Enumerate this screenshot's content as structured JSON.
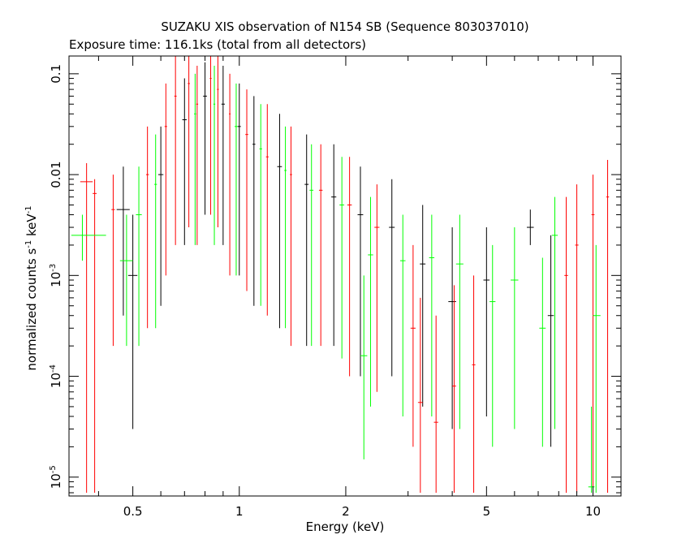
{
  "chart_data": {
    "type": "scatter",
    "title": "SUZAKU XIS observation of N154 SB (Sequence 803037010)",
    "subtitle": "Exposure time: 116.1ks (total from all detectors)",
    "xlabel": "Energy (keV)",
    "ylabel": "normalized counts s^-1 keV^-1",
    "ylabel_main": "normalized counts s",
    "ylabel_mid": " keV",
    "ylabel_exp": "-1",
    "x_scale": "log",
    "y_scale": "log",
    "xlim": [
      0.33,
      12.0
    ],
    "ylim": [
      6.5e-06,
      0.15
    ],
    "x_ticks": [
      {
        "value": 0.5,
        "label": "0.5"
      },
      {
        "value": 1,
        "label": "1"
      },
      {
        "value": 2,
        "label": "2"
      },
      {
        "value": 5,
        "label": "5"
      },
      {
        "value": 10,
        "label": "10"
      }
    ],
    "y_ticks": [
      {
        "value": 0.1,
        "label": "0.1",
        "exp": ""
      },
      {
        "value": 0.01,
        "label": "0.01",
        "exp": ""
      },
      {
        "value": 0.001,
        "label": "10",
        "exp": "-3"
      },
      {
        "value": 0.0001,
        "label": "10",
        "exp": "-4"
      },
      {
        "value": 1e-05,
        "label": "10",
        "exp": "-5"
      }
    ],
    "grid": false,
    "series": [
      {
        "color": "#000000",
        "points": [
          {
            "x": 0.47,
            "xlo": 0.45,
            "xhi": 0.49,
            "y": 0.0045,
            "ylo": 0.0004,
            "yhi": 0.012
          },
          {
            "x": 0.5,
            "xlo": 0.485,
            "xhi": 0.515,
            "y": 0.001,
            "ylo": 3e-05,
            "yhi": 0.004
          },
          {
            "x": 0.6,
            "xlo": 0.59,
            "xhi": 0.61,
            "y": 0.01,
            "ylo": 0.0005,
            "yhi": 0.03
          },
          {
            "x": 0.7,
            "xlo": 0.69,
            "xhi": 0.71,
            "y": 0.035,
            "ylo": 0.002,
            "yhi": 0.09
          },
          {
            "x": 0.8,
            "xlo": 0.79,
            "xhi": 0.81,
            "y": 0.06,
            "ylo": 0.004,
            "yhi": 0.13
          },
          {
            "x": 0.9,
            "xlo": 0.89,
            "xhi": 0.91,
            "y": 0.05,
            "ylo": 0.002,
            "yhi": 0.12
          },
          {
            "x": 1.0,
            "xlo": 0.99,
            "xhi": 1.01,
            "y": 0.03,
            "ylo": 0.001,
            "yhi": 0.08
          },
          {
            "x": 1.1,
            "xlo": 1.09,
            "xhi": 1.11,
            "y": 0.02,
            "ylo": 0.0005,
            "yhi": 0.06
          },
          {
            "x": 1.3,
            "xlo": 1.28,
            "xhi": 1.32,
            "y": 0.012,
            "ylo": 0.0003,
            "yhi": 0.04
          },
          {
            "x": 1.55,
            "xlo": 1.53,
            "xhi": 1.57,
            "y": 0.008,
            "ylo": 0.0002,
            "yhi": 0.025
          },
          {
            "x": 1.85,
            "xlo": 1.82,
            "xhi": 1.88,
            "y": 0.006,
            "ylo": 0.0002,
            "yhi": 0.02
          },
          {
            "x": 2.2,
            "xlo": 2.16,
            "xhi": 2.24,
            "y": 0.004,
            "ylo": 0.0001,
            "yhi": 0.012
          },
          {
            "x": 2.7,
            "xlo": 2.65,
            "xhi": 2.75,
            "y": 0.003,
            "ylo": 0.0001,
            "yhi": 0.009
          },
          {
            "x": 3.3,
            "xlo": 3.24,
            "xhi": 3.36,
            "y": 0.0013,
            "ylo": 5e-05,
            "yhi": 0.005
          },
          {
            "x": 4.0,
            "xlo": 3.9,
            "xhi": 4.1,
            "y": 0.00055,
            "ylo": 3e-05,
            "yhi": 0.003
          },
          {
            "x": 5.0,
            "xlo": 4.9,
            "xhi": 5.1,
            "y": 0.0009,
            "ylo": 4e-05,
            "yhi": 0.003
          },
          {
            "x": 6.65,
            "xlo": 6.5,
            "xhi": 6.8,
            "y": 0.003,
            "ylo": 0.002,
            "yhi": 0.0045
          },
          {
            "x": 7.6,
            "xlo": 7.45,
            "xhi": 7.75,
            "y": 0.0004,
            "ylo": 2e-05,
            "yhi": 0.0025
          }
        ]
      },
      {
        "color": "#ff0000",
        "points": [
          {
            "x": 0.37,
            "xlo": 0.355,
            "xhi": 0.385,
            "y": 0.0085,
            "ylo": 7e-06,
            "yhi": 0.013
          },
          {
            "x": 0.39,
            "xlo": 0.385,
            "xhi": 0.395,
            "y": 0.0065,
            "ylo": 7e-06,
            "yhi": 0.009
          },
          {
            "x": 0.44,
            "xlo": 0.435,
            "xhi": 0.445,
            "y": 0.0045,
            "ylo": 0.0002,
            "yhi": 0.01
          },
          {
            "x": 0.55,
            "xlo": 0.545,
            "xhi": 0.555,
            "y": 0.01,
            "ylo": 0.0003,
            "yhi": 0.03
          },
          {
            "x": 0.62,
            "xlo": 0.615,
            "xhi": 0.625,
            "y": 0.03,
            "ylo": 0.001,
            "yhi": 0.08
          },
          {
            "x": 0.66,
            "xlo": 0.655,
            "xhi": 0.665,
            "y": 0.06,
            "ylo": 0.002,
            "yhi": 0.15
          },
          {
            "x": 0.72,
            "xlo": 0.715,
            "xhi": 0.725,
            "y": 0.08,
            "ylo": 0.003,
            "yhi": 0.15
          },
          {
            "x": 0.76,
            "xlo": 0.755,
            "xhi": 0.765,
            "y": 0.05,
            "ylo": 0.002,
            "yhi": 0.12
          },
          {
            "x": 0.83,
            "xlo": 0.825,
            "xhi": 0.835,
            "y": 0.09,
            "ylo": 0.004,
            "yhi": 0.15
          },
          {
            "x": 0.87,
            "xlo": 0.865,
            "xhi": 0.875,
            "y": 0.07,
            "ylo": 0.003,
            "yhi": 0.15
          },
          {
            "x": 0.94,
            "xlo": 0.935,
            "xhi": 0.945,
            "y": 0.04,
            "ylo": 0.001,
            "yhi": 0.1
          },
          {
            "x": 1.05,
            "xlo": 1.04,
            "xhi": 1.06,
            "y": 0.025,
            "ylo": 0.0007,
            "yhi": 0.07
          },
          {
            "x": 1.2,
            "xlo": 1.19,
            "xhi": 1.21,
            "y": 0.015,
            "ylo": 0.0004,
            "yhi": 0.05
          },
          {
            "x": 1.4,
            "xlo": 1.39,
            "xhi": 1.41,
            "y": 0.01,
            "ylo": 0.0002,
            "yhi": 0.03
          },
          {
            "x": 1.7,
            "xlo": 1.68,
            "xhi": 1.72,
            "y": 0.007,
            "ylo": 0.0002,
            "yhi": 0.02
          },
          {
            "x": 2.05,
            "xlo": 2.02,
            "xhi": 2.08,
            "y": 0.005,
            "ylo": 0.0001,
            "yhi": 0.015
          },
          {
            "x": 2.45,
            "xlo": 2.41,
            "xhi": 2.49,
            "y": 0.003,
            "ylo": 7e-05,
            "yhi": 0.008
          },
          {
            "x": 3.1,
            "xlo": 3.05,
            "xhi": 3.15,
            "y": 0.0003,
            "ylo": 2e-05,
            "yhi": 0.002
          },
          {
            "x": 3.25,
            "xlo": 3.2,
            "xhi": 3.3,
            "y": 5.5e-05,
            "ylo": 7e-06,
            "yhi": 0.0006
          },
          {
            "x": 3.6,
            "xlo": 3.55,
            "xhi": 3.65,
            "y": 3.5e-05,
            "ylo": 7e-06,
            "yhi": 0.0004
          },
          {
            "x": 4.05,
            "xlo": 4.0,
            "xhi": 4.1,
            "y": 8e-05,
            "ylo": 7e-06,
            "yhi": 0.0008
          },
          {
            "x": 4.6,
            "xlo": 4.55,
            "xhi": 4.65,
            "y": 0.00013,
            "ylo": 7e-06,
            "yhi": 0.001
          },
          {
            "x": 8.4,
            "xlo": 8.3,
            "xhi": 8.5,
            "y": 0.001,
            "ylo": 7e-06,
            "yhi": 0.006
          },
          {
            "x": 9.0,
            "xlo": 8.9,
            "xhi": 9.1,
            "y": 0.002,
            "ylo": 7e-06,
            "yhi": 0.008
          },
          {
            "x": 10.0,
            "xlo": 9.9,
            "xhi": 10.1,
            "y": 0.004,
            "ylo": 7e-06,
            "yhi": 0.01
          },
          {
            "x": 11.0,
            "xlo": 10.9,
            "xhi": 11.1,
            "y": 0.006,
            "ylo": 7e-06,
            "yhi": 0.014
          }
        ]
      },
      {
        "color": "#00ff00",
        "points": [
          {
            "x": 0.36,
            "xlo": 0.335,
            "xhi": 0.42,
            "y": 0.0025,
            "ylo": 0.0014,
            "yhi": 0.004
          },
          {
            "x": 0.48,
            "xlo": 0.46,
            "xhi": 0.5,
            "y": 0.0014,
            "ylo": 0.0002,
            "yhi": 0.004
          },
          {
            "x": 0.52,
            "xlo": 0.51,
            "xhi": 0.53,
            "y": 0.004,
            "ylo": 0.0002,
            "yhi": 0.012
          },
          {
            "x": 0.58,
            "xlo": 0.575,
            "xhi": 0.585,
            "y": 0.008,
            "ylo": 0.0003,
            "yhi": 0.025
          },
          {
            "x": 0.75,
            "xlo": 0.745,
            "xhi": 0.755,
            "y": 0.04,
            "ylo": 0.002,
            "yhi": 0.1
          },
          {
            "x": 0.85,
            "xlo": 0.845,
            "xhi": 0.855,
            "y": 0.05,
            "ylo": 0.002,
            "yhi": 0.12
          },
          {
            "x": 0.98,
            "xlo": 0.97,
            "xhi": 0.99,
            "y": 0.03,
            "ylo": 0.001,
            "yhi": 0.08
          },
          {
            "x": 1.15,
            "xlo": 1.14,
            "xhi": 1.16,
            "y": 0.018,
            "ylo": 0.0005,
            "yhi": 0.05
          },
          {
            "x": 1.35,
            "xlo": 1.34,
            "xhi": 1.36,
            "y": 0.011,
            "ylo": 0.0003,
            "yhi": 0.03
          },
          {
            "x": 1.6,
            "xlo": 1.58,
            "xhi": 1.62,
            "y": 0.007,
            "ylo": 0.0002,
            "yhi": 0.02
          },
          {
            "x": 1.95,
            "xlo": 1.92,
            "xhi": 1.98,
            "y": 0.005,
            "ylo": 0.00015,
            "yhi": 0.015
          },
          {
            "x": 2.35,
            "xlo": 2.31,
            "xhi": 2.39,
            "y": 0.0016,
            "ylo": 5e-05,
            "yhi": 0.006
          },
          {
            "x": 2.25,
            "xlo": 2.2,
            "xhi": 2.3,
            "y": 0.00016,
            "ylo": 1.5e-05,
            "yhi": 0.001
          },
          {
            "x": 2.9,
            "xlo": 2.85,
            "xhi": 2.95,
            "y": 0.0014,
            "ylo": 4e-05,
            "yhi": 0.004
          },
          {
            "x": 3.5,
            "xlo": 3.44,
            "xhi": 3.56,
            "y": 0.0015,
            "ylo": 4e-05,
            "yhi": 0.004
          },
          {
            "x": 4.2,
            "xlo": 4.1,
            "xhi": 4.3,
            "y": 0.0013,
            "ylo": 3e-05,
            "yhi": 0.004
          },
          {
            "x": 5.2,
            "xlo": 5.1,
            "xhi": 5.3,
            "y": 0.00055,
            "ylo": 2e-05,
            "yhi": 0.002
          },
          {
            "x": 6.0,
            "xlo": 5.85,
            "xhi": 6.15,
            "y": 0.0009,
            "ylo": 3e-05,
            "yhi": 0.003
          },
          {
            "x": 7.2,
            "xlo": 7.05,
            "xhi": 7.35,
            "y": 0.0003,
            "ylo": 2e-05,
            "yhi": 0.0015
          },
          {
            "x": 7.8,
            "xlo": 7.65,
            "xhi": 7.95,
            "y": 0.0025,
            "ylo": 3e-05,
            "yhi": 0.006
          },
          {
            "x": 10.2,
            "xlo": 10.0,
            "xhi": 10.5,
            "y": 0.0004,
            "ylo": 7e-06,
            "yhi": 0.002
          },
          {
            "x": 9.9,
            "xlo": 9.7,
            "xhi": 10.1,
            "y": 8e-06,
            "ylo": 7e-06,
            "yhi": 5e-05
          }
        ]
      }
    ]
  }
}
